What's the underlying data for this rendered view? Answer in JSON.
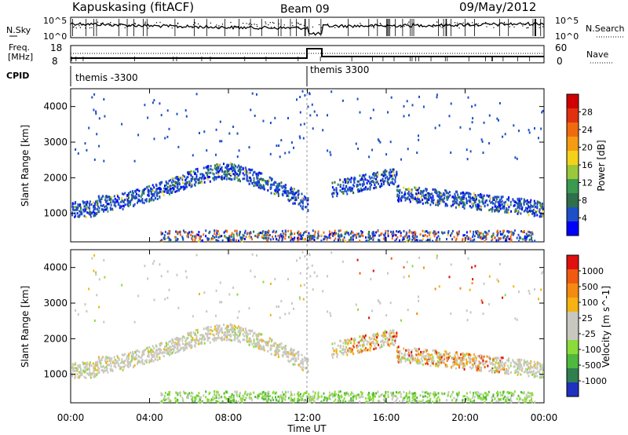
{
  "header": {
    "station": "Kapuskasing (fitACF)",
    "beam": "Beam 09",
    "date": "09/May/2012"
  },
  "noise_panel": {
    "left_label": "N.Sky",
    "left_ticks": [
      "10^5",
      "10^0"
    ],
    "right_ticks": [
      "10^5",
      "10^0"
    ],
    "right_label": "N.Search"
  },
  "freq_panel": {
    "left_label_1": "Freq.",
    "left_label_2": "[MHz]",
    "left_ticks": [
      "18",
      "8"
    ],
    "right_ticks": [
      "60",
      "0"
    ],
    "right_label": "Nave"
  },
  "cpid_panel": {
    "label": "CPID",
    "segments": [
      {
        "name": "themis -3300",
        "start_hour": 0
      },
      {
        "name": "themis 3300",
        "start_hour": 12
      }
    ]
  },
  "x_axis": {
    "label": "Time UT",
    "ticks": [
      "00:00",
      "04:00",
      "08:00",
      "12:00",
      "16:00",
      "20:00",
      "00:00"
    ],
    "range_hours": [
      0,
      24
    ]
  },
  "chart_data": [
    {
      "type": "heatmap",
      "ylabel": "Slant Range [km]",
      "yticks": [
        1000,
        2000,
        3000,
        4000
      ],
      "ylim": [
        200,
        4500
      ],
      "colorbar_label": "Power [dB]",
      "colorbar_ticks": [
        "28",
        "24",
        "20",
        "16",
        "12",
        "8",
        "4"
      ],
      "colorbar_colors": [
        "#0000ff",
        "#1e4fc8",
        "#2f6f4a",
        "#3a9a50",
        "#9bc83a",
        "#f5d21a",
        "#f59c12",
        "#f06a10",
        "#e03010",
        "#d00000"
      ]
    },
    {
      "type": "heatmap",
      "ylabel": "Slant Range [km]",
      "yticks": [
        1000,
        2000,
        3000,
        4000
      ],
      "ylim": [
        200,
        4500
      ],
      "colorbar_label": "Velocity [m s^-1]",
      "colorbar_ticks": [
        "1000",
        "500",
        "100",
        "25",
        "-25",
        "-100",
        "-500",
        "-1000"
      ],
      "colorbar_colors": [
        "#2030c0",
        "#2f7f4f",
        "#4fb83f",
        "#8bdc3a",
        "#c8c8c0",
        "#c8c8c0",
        "#f5b212",
        "#f58a10",
        "#f05a10",
        "#e01010"
      ]
    }
  ]
}
